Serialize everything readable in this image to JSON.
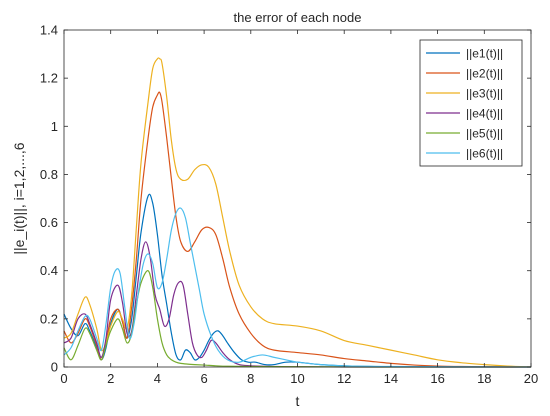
{
  "chart_data": {
    "type": "line",
    "title": "the error of each node",
    "xlabel": "t",
    "ylabel": "||e_i(t)||, i=1,2,...,6",
    "xlim": [
      0,
      20
    ],
    "ylim": [
      0,
      1.4
    ],
    "xticks": [
      "0",
      "2",
      "4",
      "6",
      "8",
      "10",
      "12",
      "14",
      "16",
      "18",
      "20"
    ],
    "yticks": [
      "0",
      "0.2",
      "0.4",
      "0.6",
      "0.8",
      "1",
      "1.2",
      "1.4"
    ],
    "grid": false,
    "legend_position": "top-right",
    "series": [
      {
        "name": "||e1(t)||",
        "color": "#0072BD",
        "x": [
          0,
          0.3,
          0.6,
          0.9,
          1.1,
          1.4,
          1.6,
          1.8,
          2.0,
          2.3,
          2.5,
          2.7,
          2.9,
          3.1,
          3.3,
          3.6,
          3.8,
          4.0,
          4.2,
          4.4,
          4.6,
          4.8,
          5.0,
          5.2,
          5.4,
          5.6,
          5.8,
          6.0,
          6.2,
          6.4,
          6.6,
          6.8,
          7.0,
          7.3,
          7.6,
          7.9,
          8.2,
          8.6,
          9.0,
          9.5,
          10,
          11,
          12,
          13,
          14,
          16,
          20
        ],
        "y": [
          0.22,
          0.16,
          0.13,
          0.18,
          0.15,
          0.08,
          0.03,
          0.08,
          0.18,
          0.24,
          0.19,
          0.12,
          0.2,
          0.38,
          0.56,
          0.71,
          0.68,
          0.55,
          0.38,
          0.26,
          0.14,
          0.05,
          0.03,
          0.07,
          0.06,
          0.03,
          0.04,
          0.07,
          0.11,
          0.14,
          0.15,
          0.13,
          0.1,
          0.06,
          0.03,
          0.02,
          0.02,
          0.01,
          0.01,
          0.02,
          0.02,
          0.01,
          0.005,
          0.002,
          0.001,
          0.0,
          0.0
        ]
      },
      {
        "name": "||e2(t)||",
        "color": "#D95319",
        "x": [
          0,
          0.3,
          0.6,
          0.9,
          1.1,
          1.4,
          1.6,
          1.8,
          2.0,
          2.3,
          2.5,
          2.7,
          2.9,
          3.1,
          3.3,
          3.6,
          3.8,
          4.0,
          4.1,
          4.2,
          4.4,
          4.6,
          4.8,
          5.0,
          5.3,
          5.6,
          5.9,
          6.2,
          6.5,
          6.8,
          7.1,
          7.5,
          8.0,
          8.5,
          9.0,
          10,
          11,
          12,
          13,
          14,
          15,
          16,
          17,
          18,
          19,
          20
        ],
        "y": [
          0.15,
          0.1,
          0.14,
          0.2,
          0.17,
          0.09,
          0.03,
          0.1,
          0.2,
          0.24,
          0.19,
          0.12,
          0.25,
          0.45,
          0.7,
          0.95,
          1.08,
          1.13,
          1.14,
          1.1,
          0.95,
          0.78,
          0.62,
          0.52,
          0.48,
          0.52,
          0.57,
          0.58,
          0.55,
          0.45,
          0.33,
          0.22,
          0.14,
          0.09,
          0.07,
          0.06,
          0.05,
          0.035,
          0.025,
          0.015,
          0.008,
          0.004,
          0.002,
          0.001,
          0.0,
          0.0
        ]
      },
      {
        "name": "||e3(t)||",
        "color": "#EDB120",
        "x": [
          0,
          0.3,
          0.6,
          0.9,
          1.1,
          1.4,
          1.6,
          1.8,
          2.0,
          2.3,
          2.5,
          2.7,
          2.9,
          3.1,
          3.3,
          3.6,
          3.8,
          4.0,
          4.1,
          4.2,
          4.4,
          4.6,
          4.8,
          5.0,
          5.3,
          5.6,
          5.9,
          6.2,
          6.5,
          6.8,
          7.1,
          7.5,
          8.0,
          8.5,
          9.0,
          10,
          11,
          12,
          13,
          14,
          15,
          16,
          17,
          18,
          19,
          20
        ],
        "y": [
          0.12,
          0.14,
          0.22,
          0.29,
          0.26,
          0.16,
          0.07,
          0.1,
          0.17,
          0.23,
          0.2,
          0.16,
          0.3,
          0.58,
          0.85,
          1.1,
          1.24,
          1.28,
          1.28,
          1.26,
          1.12,
          0.94,
          0.82,
          0.78,
          0.78,
          0.82,
          0.84,
          0.83,
          0.76,
          0.62,
          0.48,
          0.34,
          0.25,
          0.2,
          0.18,
          0.17,
          0.15,
          0.11,
          0.09,
          0.07,
          0.05,
          0.03,
          0.018,
          0.01,
          0.004,
          0.0
        ]
      },
      {
        "name": "||e4(t)||",
        "color": "#7E2F8E",
        "x": [
          0,
          0.3,
          0.6,
          0.9,
          1.1,
          1.4,
          1.6,
          1.8,
          2.0,
          2.3,
          2.5,
          2.7,
          2.9,
          3.1,
          3.3,
          3.5,
          3.7,
          3.9,
          4.1,
          4.3,
          4.5,
          4.7,
          4.9,
          5.1,
          5.3,
          5.5,
          5.7,
          5.9,
          6.1,
          6.3,
          6.5,
          6.8,
          7.1,
          7.5,
          8.0,
          9.0,
          10,
          12,
          14,
          20
        ],
        "y": [
          0.1,
          0.12,
          0.2,
          0.22,
          0.18,
          0.1,
          0.04,
          0.12,
          0.28,
          0.34,
          0.27,
          0.14,
          0.15,
          0.3,
          0.45,
          0.52,
          0.45,
          0.3,
          0.24,
          0.17,
          0.2,
          0.3,
          0.35,
          0.34,
          0.22,
          0.1,
          0.05,
          0.04,
          0.07,
          0.11,
          0.1,
          0.06,
          0.03,
          0.01,
          0.005,
          0.002,
          0.001,
          0.0,
          0.0,
          0.0
        ]
      },
      {
        "name": "||e5(t)||",
        "color": "#77AC30",
        "x": [
          0,
          0.3,
          0.6,
          0.9,
          1.1,
          1.4,
          1.6,
          1.8,
          2.0,
          2.3,
          2.5,
          2.7,
          2.9,
          3.1,
          3.3,
          3.6,
          3.8,
          4.0,
          4.2,
          4.4,
          4.6,
          4.8,
          5.0,
          5.3,
          5.6,
          6.0,
          6.5,
          7.0,
          8.0,
          10,
          14,
          20
        ],
        "y": [
          0.08,
          0.03,
          0.09,
          0.16,
          0.14,
          0.07,
          0.03,
          0.09,
          0.15,
          0.2,
          0.16,
          0.1,
          0.14,
          0.26,
          0.35,
          0.4,
          0.33,
          0.2,
          0.1,
          0.05,
          0.03,
          0.02,
          0.015,
          0.012,
          0.01,
          0.008,
          0.005,
          0.003,
          0.002,
          0.001,
          0.0,
          0.0
        ]
      },
      {
        "name": "||e6(t)||",
        "color": "#4DBEEE",
        "x": [
          0,
          0.3,
          0.6,
          0.9,
          1.1,
          1.4,
          1.6,
          1.8,
          2.0,
          2.2,
          2.4,
          2.6,
          2.8,
          3.0,
          3.2,
          3.4,
          3.6,
          3.8,
          4.0,
          4.2,
          4.4,
          4.6,
          4.8,
          5.0,
          5.2,
          5.4,
          5.6,
          5.8,
          6.0,
          6.3,
          6.6,
          7.0,
          7.5,
          8.0,
          8.5,
          9.0,
          9.5,
          10,
          11,
          12,
          13,
          14,
          16,
          20
        ],
        "y": [
          0.05,
          0.08,
          0.15,
          0.21,
          0.2,
          0.12,
          0.07,
          0.18,
          0.33,
          0.4,
          0.39,
          0.25,
          0.12,
          0.18,
          0.32,
          0.43,
          0.47,
          0.43,
          0.33,
          0.35,
          0.45,
          0.57,
          0.64,
          0.66,
          0.62,
          0.52,
          0.42,
          0.32,
          0.22,
          0.13,
          0.07,
          0.03,
          0.02,
          0.04,
          0.05,
          0.04,
          0.03,
          0.02,
          0.01,
          0.005,
          0.003,
          0.002,
          0.001,
          0.0
        ]
      }
    ]
  }
}
